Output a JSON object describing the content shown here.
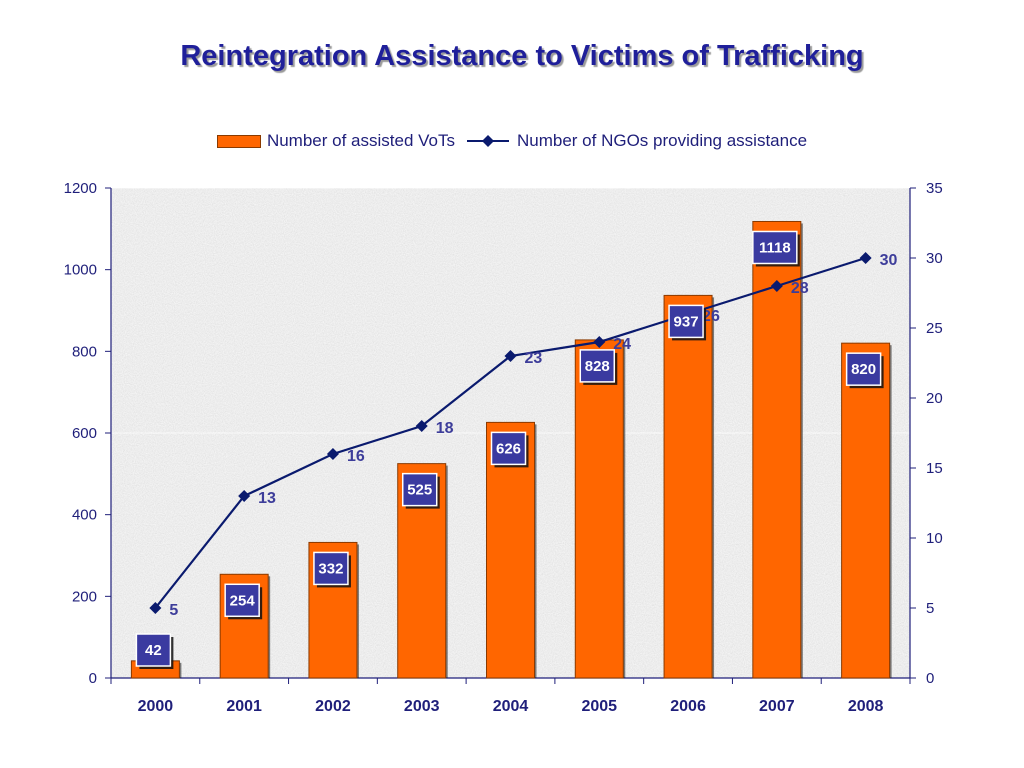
{
  "chart_data": {
    "type": "bar",
    "title": "Reintegration Assistance to Victims of Trafficking",
    "categories": [
      "2000",
      "2001",
      "2002",
      "2003",
      "2004",
      "2005",
      "2006",
      "2007",
      "2008"
    ],
    "series": [
      {
        "name": "Number of assisted VoTs",
        "type": "bar",
        "axis": "left",
        "values": [
          42,
          254,
          332,
          525,
          626,
          828,
          937,
          1118,
          820
        ],
        "color": "#ff6600"
      },
      {
        "name": "Number of NGOs providing assistance",
        "type": "line",
        "axis": "right",
        "values": [
          5,
          13,
          16,
          18,
          23,
          24,
          26,
          28,
          30
        ],
        "color": "#0a1a6e"
      }
    ],
    "y_left": {
      "range": [
        0,
        1200
      ],
      "ticks": [
        0,
        200,
        400,
        600,
        800,
        1000,
        1200
      ]
    },
    "y_right": {
      "range": [
        0,
        35
      ],
      "ticks": [
        0,
        5,
        10,
        15,
        20,
        25,
        30,
        35
      ]
    },
    "legend_position": "top",
    "bar_label_color": "#3a3aa0"
  }
}
